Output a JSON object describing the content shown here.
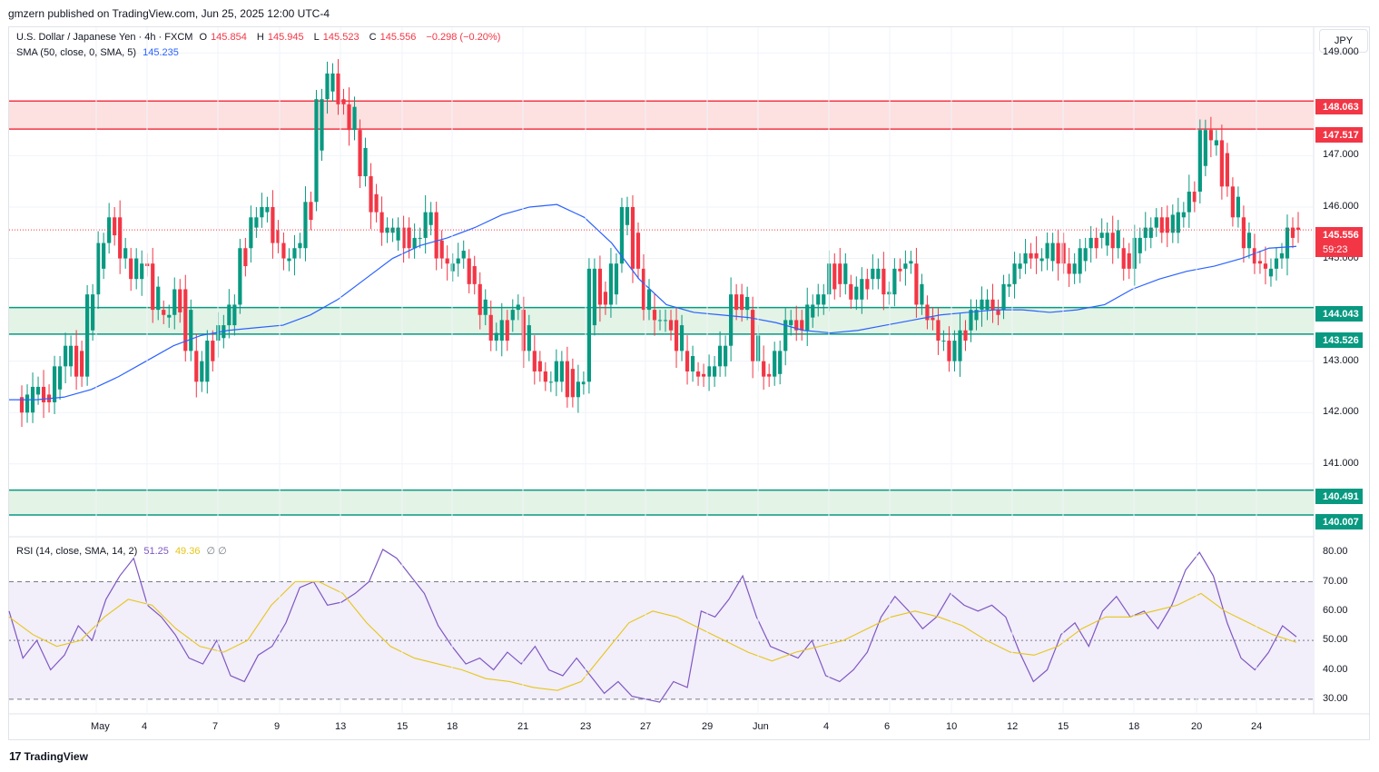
{
  "header": {
    "published": "gmzern published on TradingView.com, Jun 25, 2025 12:00 UTC-4"
  },
  "legend": {
    "symbol": "U.S. Dollar / Japanese Yen · 4h · FXCM",
    "o_label": "O",
    "o": "145.854",
    "h_label": "H",
    "h": "145.945",
    "l_label": "L",
    "l": "145.523",
    "c_label": "C",
    "c": "145.556",
    "change": "−0.298 (−0.20%)",
    "sma_label": "SMA (50, close, 0, SMA, 5)",
    "sma_value": "145.235",
    "rsi_label": "RSI (14, close, SMA, 14, 2)",
    "rsi_value": "51.25",
    "rsi_sma": "49.36",
    "rsi_extra": "∅ ∅"
  },
  "currency_button": "JPY",
  "price_axis": [
    "149.000",
    "147.000",
    "146.000",
    "145.000",
    "143.000",
    "142.000",
    "141.000"
  ],
  "price_tags": {
    "resistance_top": "148.063",
    "resistance_bottom": "147.517",
    "last_price": "145.556",
    "countdown": "59:23",
    "support_top": "144.043",
    "support_bottom": "143.526",
    "support2_top": "140.491",
    "support2_bottom": "140.007"
  },
  "rsi_axis": [
    "80.00",
    "70.00",
    "60.00",
    "50.00",
    "40.00",
    "30.00"
  ],
  "time_axis": [
    "May",
    "4",
    "7",
    "9",
    "13",
    "15",
    "18",
    "21",
    "23",
    "27",
    "29",
    "Jun",
    "4",
    "6",
    "10",
    "12",
    "15",
    "18",
    "20",
    "24"
  ],
  "footer": {
    "brand": "TradingView",
    "brand_icon": "tradingview-logo-icon"
  },
  "colors": {
    "up": "#089981",
    "down": "#f23645",
    "sma": "#2962ff",
    "rsi": "#7e57c2",
    "rsi_sma": "#e6c619",
    "resistance_zone": "#fde0e0",
    "support_zone": "#e3f3e6"
  },
  "chart_data": {
    "type": "candlestick",
    "symbol": "USD/JPY",
    "ylim": [
      139.6,
      149.5
    ],
    "zones": [
      {
        "kind": "resistance",
        "from": 147.517,
        "to": 148.063
      },
      {
        "kind": "support",
        "from": 143.526,
        "to": 144.043
      },
      {
        "kind": "support",
        "from": 140.007,
        "to": 140.491
      }
    ],
    "close_path": [
      142.3,
      142.0,
      142.5,
      142.2,
      142.9,
      143.3,
      142.7,
      144.3,
      145.3,
      145.8,
      145.0,
      144.6,
      144.9,
      144.0,
      143.9,
      144.4,
      143.2,
      142.6,
      143.4,
      143.7,
      144.1,
      145.2,
      145.8,
      146.0,
      145.3,
      145.0,
      145.2,
      146.1,
      148.1,
      148.6,
      148.0,
      147.5,
      146.6,
      145.9,
      145.5,
      145.6,
      145.2,
      145.4,
      145.9,
      145.0,
      144.9,
      145.0,
      144.5,
      143.9,
      143.4,
      143.8,
      144.0,
      143.2,
      142.8,
      142.6,
      143.0,
      142.3,
      142.6,
      144.8,
      144.1,
      144.9,
      146.0,
      144.8,
      144.0,
      143.8,
      143.8,
      143.2,
      142.8,
      142.7,
      142.9,
      143.3,
      144.3,
      144.0,
      143.0,
      142.7,
      143.2,
      143.8,
      143.6,
      144.1,
      144.3,
      144.9,
      144.5,
      144.2,
      144.6,
      144.8,
      144.3,
      144.8,
      144.9,
      144.1,
      143.8,
      143.4,
      143.0,
      143.6,
      144.0,
      144.2,
      144.0,
      144.5,
      144.9,
      145.1,
      145.0,
      145.3,
      144.9,
      144.7,
      145.2,
      145.4,
      145.5,
      145.2,
      144.8,
      145.4,
      145.6,
      145.8,
      145.5,
      145.9,
      146.3,
      147.5,
      147.3,
      146.4,
      145.8,
      145.2,
      144.9,
      144.8,
      145.0,
      145.6,
      145.556
    ],
    "sma_path": [
      142.25,
      142.25,
      142.3,
      142.45,
      142.7,
      143.0,
      143.3,
      143.5,
      143.6,
      143.65,
      143.7,
      143.9,
      144.2,
      144.6,
      145.0,
      145.25,
      145.4,
      145.6,
      145.85,
      146.0,
      146.05,
      145.8,
      145.3,
      144.6,
      144.1,
      143.95,
      143.9,
      143.85,
      143.75,
      143.6,
      143.55,
      143.6,
      143.7,
      143.8,
      143.9,
      143.95,
      144.0,
      144.0,
      143.95,
      144.0,
      144.1,
      144.4,
      144.6,
      144.75,
      144.85,
      145.0,
      145.2,
      145.235
    ],
    "rsi_path": [
      60,
      44,
      50,
      40,
      45,
      55,
      50,
      64,
      72,
      78,
      62,
      58,
      52,
      44,
      42,
      50,
      38,
      36,
      45,
      48,
      56,
      68,
      70,
      62,
      63,
      66,
      70,
      81,
      78,
      72,
      66,
      55,
      48,
      42,
      44,
      40,
      46,
      42,
      48,
      40,
      38,
      44,
      38,
      32,
      36,
      31,
      30,
      29,
      36,
      34,
      60,
      58,
      64,
      72,
      58,
      48,
      46,
      44,
      50,
      38,
      36,
      40,
      46,
      58,
      65,
      60,
      54,
      58,
      66,
      62,
      60,
      62,
      58,
      46,
      36,
      40,
      52,
      56,
      48,
      60,
      65,
      58,
      60,
      54,
      62,
      74,
      80,
      72,
      56,
      44,
      40,
      46,
      55,
      51.25
    ],
    "rsi_sma_path": [
      58,
      52,
      48,
      50,
      58,
      64,
      62,
      54,
      48,
      46,
      50,
      62,
      70,
      70,
      66,
      56,
      48,
      44,
      42,
      40,
      37,
      36,
      34,
      33,
      36,
      46,
      56,
      60,
      58,
      54,
      50,
      46,
      43,
      46,
      48,
      50,
      54,
      58,
      60,
      58,
      55,
      50,
      46,
      45,
      48,
      54,
      58,
      58,
      60,
      62,
      66,
      60,
      56,
      52,
      49.36
    ],
    "rsi_levels": {
      "upper": 70,
      "middle": 50,
      "lower": 30
    },
    "rsi_ylim": [
      25,
      85
    ]
  }
}
